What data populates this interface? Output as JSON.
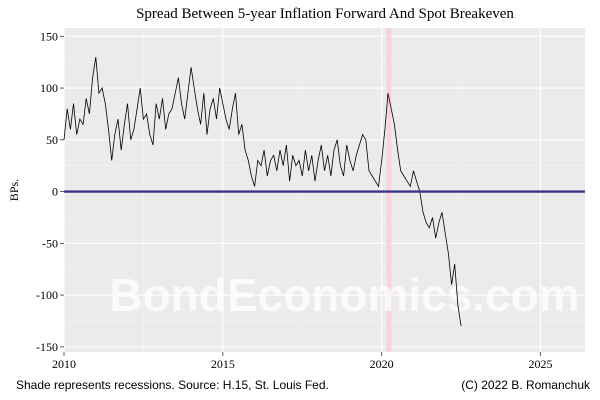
{
  "chart_data": {
    "type": "line",
    "title": "Spread Between 5-year Inflation Forward And Spot Breakeven",
    "ylabel": "BPs.",
    "xlabel": "",
    "xlim": [
      2010,
      2026.4
    ],
    "ylim": [
      -155,
      158
    ],
    "x_ticks": [
      {
        "value": 2010,
        "label": "2010"
      },
      {
        "value": 2015,
        "label": "2015"
      },
      {
        "value": 2020,
        "label": "2020"
      },
      {
        "value": 2025,
        "label": "2025"
      }
    ],
    "y_ticks": [
      {
        "value": 150,
        "label": "150"
      },
      {
        "value": 100,
        "label": "100"
      },
      {
        "value": 50,
        "label": "50"
      },
      {
        "value": 0,
        "label": "0"
      },
      {
        "value": -50,
        "label": "-50"
      },
      {
        "value": -100,
        "label": "-100"
      },
      {
        "value": -150,
        "label": "-150"
      }
    ],
    "grid": true,
    "reference_line": {
      "y": 0,
      "color": "#3b3589"
    },
    "recession": {
      "start": 2020.15,
      "end": 2020.3,
      "color": "#f6d5da"
    },
    "series": [
      {
        "color": "#000000",
        "x": [
          2010.0,
          2010.1,
          2010.2,
          2010.3,
          2010.4,
          2010.5,
          2010.6,
          2010.7,
          2010.8,
          2010.9,
          2011.0,
          2011.1,
          2011.2,
          2011.3,
          2011.4,
          2011.5,
          2011.6,
          2011.7,
          2011.8,
          2011.9,
          2012.0,
          2012.1,
          2012.2,
          2012.3,
          2012.4,
          2012.5,
          2012.6,
          2012.7,
          2012.8,
          2012.9,
          2013.0,
          2013.1,
          2013.2,
          2013.3,
          2013.4,
          2013.5,
          2013.6,
          2013.7,
          2013.8,
          2013.9,
          2014.0,
          2014.1,
          2014.2,
          2014.3,
          2014.4,
          2014.5,
          2014.6,
          2014.7,
          2014.8,
          2014.9,
          2015.0,
          2015.1,
          2015.2,
          2015.3,
          2015.4,
          2015.5,
          2015.6,
          2015.7,
          2015.8,
          2015.9,
          2016.0,
          2016.1,
          2016.2,
          2016.3,
          2016.4,
          2016.5,
          2016.6,
          2016.7,
          2016.8,
          2016.9,
          2017.0,
          2017.1,
          2017.2,
          2017.3,
          2017.4,
          2017.5,
          2017.6,
          2017.7,
          2017.8,
          2017.9,
          2018.0,
          2018.1,
          2018.2,
          2018.3,
          2018.4,
          2018.5,
          2018.6,
          2018.7,
          2018.8,
          2018.9,
          2019.0,
          2019.1,
          2019.2,
          2019.3,
          2019.4,
          2019.5,
          2019.6,
          2019.7,
          2019.8,
          2019.9,
          2020.0,
          2020.1,
          2020.2,
          2020.3,
          2020.4,
          2020.5,
          2020.6,
          2020.7,
          2020.8,
          2020.9,
          2021.0,
          2021.1,
          2021.2,
          2021.3,
          2021.4,
          2021.5,
          2021.6,
          2021.7,
          2021.8,
          2021.9,
          2022.0,
          2022.1,
          2022.2,
          2022.3,
          2022.4,
          2022.5
        ],
        "y": [
          50,
          80,
          60,
          85,
          55,
          70,
          65,
          90,
          75,
          110,
          130,
          95,
          100,
          85,
          60,
          30,
          55,
          70,
          40,
          65,
          85,
          50,
          60,
          80,
          100,
          70,
          75,
          55,
          45,
          85,
          70,
          90,
          60,
          75,
          80,
          95,
          110,
          85,
          70,
          95,
          120,
          100,
          80,
          65,
          95,
          55,
          80,
          90,
          70,
          100,
          85,
          70,
          60,
          80,
          95,
          55,
          65,
          40,
          30,
          15,
          5,
          30,
          25,
          40,
          15,
          30,
          35,
          20,
          40,
          25,
          45,
          10,
          35,
          25,
          30,
          15,
          40,
          20,
          35,
          10,
          30,
          45,
          20,
          35,
          15,
          40,
          50,
          25,
          15,
          45,
          30,
          20,
          35,
          45,
          55,
          50,
          20,
          15,
          10,
          5,
          30,
          60,
          95,
          80,
          65,
          40,
          20,
          15,
          10,
          5,
          20,
          10,
          0,
          -20,
          -30,
          -35,
          -25,
          -45,
          -30,
          -20,
          -40,
          -60,
          -90,
          -70,
          -110,
          -130
        ]
      }
    ]
  },
  "watermark": "BondEconomics.com",
  "footer_left": "Shade represents recessions. Source: H.15, St. Louis Fed.",
  "footer_right": "(C) 2022 B. Romanchuk"
}
